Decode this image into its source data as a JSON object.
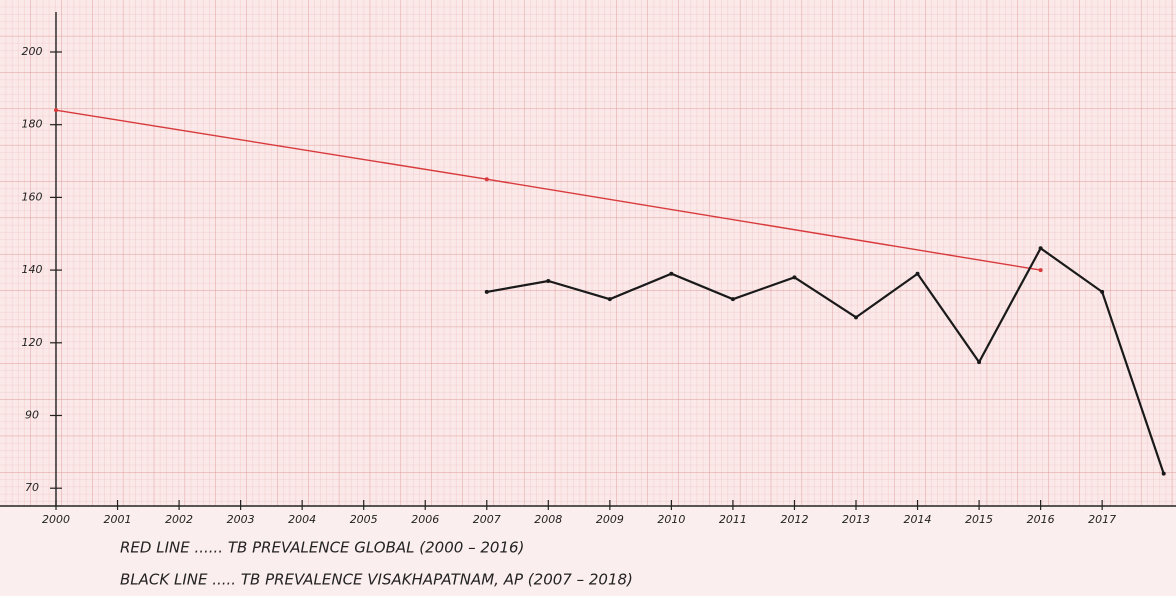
{
  "chart_data": {
    "type": "line",
    "x": [
      2000,
      2001,
      2002,
      2003,
      2004,
      2005,
      2006,
      2007,
      2008,
      2009,
      2010,
      2011,
      2012,
      2013,
      2014,
      2015,
      2016,
      2017,
      2018
    ],
    "series": [
      {
        "name": "RED LINE ...... TB PREVALENCE GLOBAL (2000 – 2016)",
        "color": "#d8393b",
        "values": [
          184,
          null,
          null,
          null,
          null,
          null,
          null,
          165,
          null,
          null,
          null,
          null,
          null,
          null,
          null,
          null,
          140,
          null,
          null
        ]
      },
      {
        "name": "BLACK LINE ..... TB PREVALENCE VISAKHAPATNAM, AP (2007 – 2018)",
        "color": "#1a1a1a",
        "values": [
          null,
          null,
          null,
          null,
          null,
          null,
          null,
          134,
          137,
          132,
          139,
          132,
          138,
          127,
          139,
          112,
          146,
          134,
          74
        ]
      }
    ],
    "xlim": [
      2000,
      2018.2
    ],
    "xticks": [
      2000,
      2001,
      2002,
      2003,
      2004,
      2005,
      2006,
      2007,
      2008,
      2009,
      2010,
      2011,
      2012,
      2013,
      2014,
      2015,
      2016,
      2017
    ],
    "ylim": [
      70,
      200
    ],
    "yticks": [
      200,
      180,
      160,
      140,
      120,
      90,
      70
    ],
    "grid": true
  }
}
